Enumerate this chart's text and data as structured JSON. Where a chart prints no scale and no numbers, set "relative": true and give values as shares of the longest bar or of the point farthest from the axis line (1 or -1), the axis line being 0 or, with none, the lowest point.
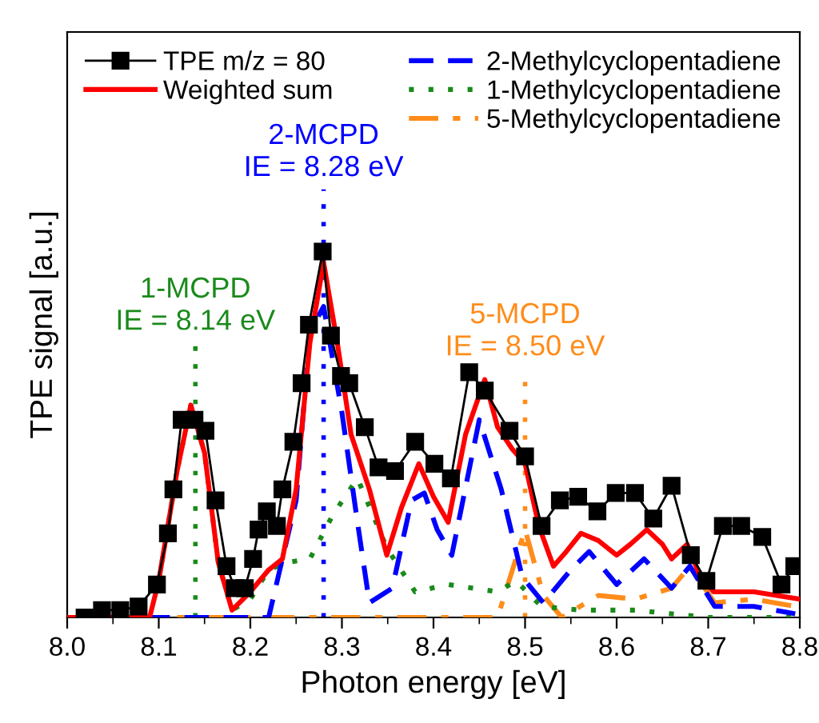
{
  "chart_data": {
    "type": "line",
    "relative": true,
    "xlabel": "Photon energy [eV]",
    "ylabel": "TPE signal [a.u.]",
    "xlim": [
      8.0,
      8.8
    ],
    "xticks": [
      {
        "value": 8.0,
        "label": "8.0"
      },
      {
        "value": 8.1,
        "label": "8.1"
      },
      {
        "value": 8.2,
        "label": "8.2"
      },
      {
        "value": 8.3,
        "label": "8.3"
      },
      {
        "value": 8.4,
        "label": "8.4"
      },
      {
        "value": 8.5,
        "label": "8.5"
      },
      {
        "value": 8.6,
        "label": "8.6"
      },
      {
        "value": 8.7,
        "label": "8.7"
      },
      {
        "value": 8.8,
        "label": "8.8"
      }
    ],
    "grid": false,
    "legend": "top",
    "tick_labels": "x",
    "series": [
      {
        "name": "TPE m/z = 80",
        "color": "#000000",
        "marker": "square",
        "line_style": "solid",
        "x": [
          8.019,
          8.038,
          8.058,
          8.078,
          8.098,
          8.11,
          8.116,
          8.125,
          8.139,
          8.151,
          8.162,
          8.174,
          8.183,
          8.194,
          8.203,
          8.209,
          8.218,
          8.229,
          8.235,
          8.247,
          8.256,
          8.264,
          8.279,
          8.288,
          8.299,
          8.308,
          8.325,
          8.34,
          8.358,
          8.38,
          8.401,
          8.419,
          8.439,
          8.456,
          8.483,
          8.5,
          8.518,
          8.538,
          8.558,
          8.579,
          8.599,
          8.62,
          8.64,
          8.66,
          8.681,
          8.698,
          8.716,
          8.736,
          8.759,
          8.78,
          8.794
        ],
        "values": [
          0.0,
          0.02,
          0.02,
          0.03,
          0.09,
          0.23,
          0.35,
          0.54,
          0.54,
          0.51,
          0.32,
          0.14,
          0.08,
          0.08,
          0.16,
          0.24,
          0.29,
          0.25,
          0.35,
          0.48,
          0.64,
          0.8,
          1.0,
          0.77,
          0.66,
          0.64,
          0.52,
          0.41,
          0.4,
          0.48,
          0.42,
          0.38,
          0.67,
          0.62,
          0.51,
          0.44,
          0.25,
          0.32,
          0.33,
          0.29,
          0.34,
          0.34,
          0.27,
          0.36,
          0.17,
          0.1,
          0.25,
          0.25,
          0.22,
          0.09,
          0.14
        ]
      },
      {
        "name": "Weighted sum",
        "color": "#ff0000",
        "line_style": "solid",
        "x": [
          8.0,
          8.09,
          8.1,
          8.12,
          8.135,
          8.15,
          8.165,
          8.18,
          8.2,
          8.22,
          8.235,
          8.25,
          8.265,
          8.28,
          8.295,
          8.31,
          8.33,
          8.349,
          8.365,
          8.384,
          8.4,
          8.416,
          8.435,
          8.456,
          8.47,
          8.486,
          8.5,
          8.515,
          8.531,
          8.545,
          8.561,
          8.58,
          8.6,
          8.615,
          8.633,
          8.65,
          8.66,
          8.677,
          8.69,
          8.706,
          8.75,
          8.8
        ],
        "values": [
          0.0,
          0.0,
          0.1,
          0.4,
          0.58,
          0.45,
          0.15,
          0.02,
          0.07,
          0.13,
          0.16,
          0.35,
          0.75,
          0.97,
          0.75,
          0.5,
          0.35,
          0.17,
          0.3,
          0.42,
          0.33,
          0.26,
          0.5,
          0.65,
          0.52,
          0.46,
          0.42,
          0.25,
          0.14,
          0.18,
          0.23,
          0.21,
          0.17,
          0.2,
          0.24,
          0.2,
          0.16,
          0.2,
          0.12,
          0.07,
          0.07,
          0.05
        ]
      },
      {
        "name": "2-Methylcyclopentadiene",
        "color": "#0000ff",
        "line_style": "dashed",
        "x": [
          8.0,
          8.22,
          8.25,
          8.265,
          8.28,
          8.3,
          8.317,
          8.33,
          8.355,
          8.376,
          8.39,
          8.404,
          8.42,
          8.45,
          8.474,
          8.497,
          8.52,
          8.55,
          8.57,
          8.6,
          8.63,
          8.66,
          8.68,
          8.707,
          8.75,
          8.795
        ],
        "values": [
          0.0,
          0.0,
          0.32,
          0.78,
          0.85,
          0.56,
          0.26,
          0.04,
          0.08,
          0.32,
          0.34,
          0.24,
          0.17,
          0.54,
          0.35,
          0.11,
          0.04,
          0.13,
          0.18,
          0.09,
          0.16,
          0.08,
          0.14,
          0.03,
          0.03,
          0.01
        ]
      },
      {
        "name": "1-Methylcyclopentadiene",
        "color": "#1a8a1a",
        "line_style": "dotted",
        "x": [
          8.1,
          8.12,
          8.135,
          8.15,
          8.165,
          8.18,
          8.2,
          8.22,
          8.24,
          8.265,
          8.29,
          8.317,
          8.349,
          8.38,
          8.416,
          8.47,
          8.49,
          8.518,
          8.56,
          8.62,
          8.66,
          8.7,
          8.8
        ],
        "values": [
          0.1,
          0.4,
          0.58,
          0.45,
          0.15,
          0.02,
          0.05,
          0.13,
          0.15,
          0.16,
          0.28,
          0.38,
          0.19,
          0.07,
          0.09,
          0.07,
          0.1,
          0.03,
          0.02,
          0.02,
          0.01,
          0.0,
          0.0
        ]
      },
      {
        "name": "5-Methylcyclopentadiene",
        "color": "#ff8c1a",
        "line_style": "dashdot",
        "x": [
          8.0,
          8.47,
          8.5,
          8.52,
          8.54,
          8.58,
          8.62,
          8.66,
          8.68,
          8.707,
          8.75,
          8.795
        ],
        "values": [
          0.0,
          0.0,
          0.24,
          0.06,
          0.0,
          0.06,
          0.05,
          0.08,
          0.14,
          0.04,
          0.05,
          0.03
        ]
      }
    ],
    "ref_lines": [
      {
        "axis": "x",
        "value": 8.14,
        "label": "1-MCPD\nIE = 8.14 eV",
        "color": "#1a8a1a",
        "line_style": "dotted"
      },
      {
        "axis": "x",
        "value": 8.28,
        "label": "2-MCPD\nIE = 8.28 eV",
        "color": "#0000ff",
        "line_style": "dotted"
      },
      {
        "axis": "x",
        "value": 8.5,
        "label": "5-MCPD\nIE = 8.50 eV",
        "color": "#ff8c1a",
        "line_style": "dotted"
      }
    ]
  }
}
